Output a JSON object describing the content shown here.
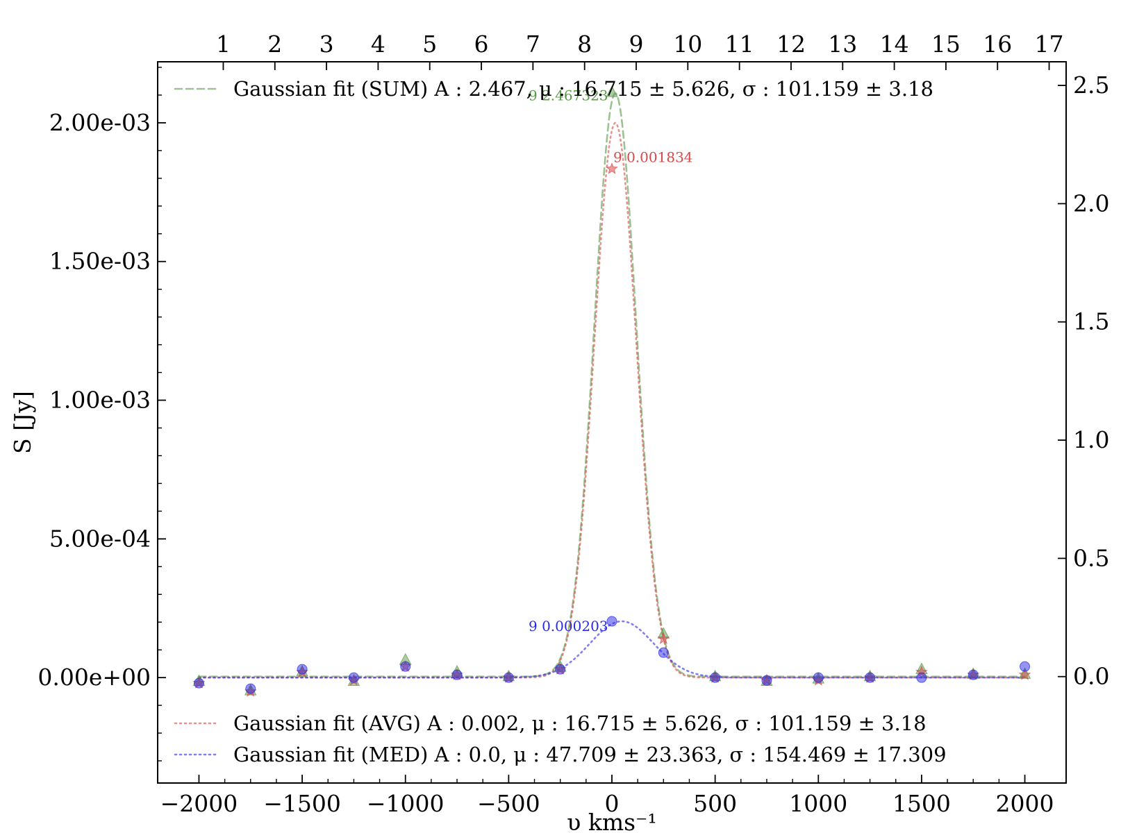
{
  "chart_data": {
    "type": "line",
    "xlabel": "υ kms⁻¹",
    "ylabel": "S [Jy]",
    "x_ticks": [
      "−2000",
      "−1500",
      "−1000",
      "−500",
      "0",
      "500",
      "1000",
      "1500",
      "2000"
    ],
    "y_left_ticks": [
      "0.00e+00",
      "5.00e-04",
      "1.00e-03",
      "1.50e-03",
      "2.00e-03"
    ],
    "y_right_ticks": [
      "0.0",
      "0.5",
      "1.0",
      "1.5",
      "2.0",
      "2.5"
    ],
    "x_top_ticks": [
      "1",
      "2",
      "3",
      "4",
      "5",
      "6",
      "7",
      "8",
      "9",
      "10",
      "11",
      "12",
      "13",
      "14",
      "15",
      "16",
      "17"
    ],
    "xlim": [
      -2200,
      2200
    ],
    "ylim_left": [
      -0.00038,
      0.00222
    ],
    "ylim_right": [
      -0.45,
      2.6
    ],
    "x": [
      -2000,
      -1750,
      -1500,
      -1250,
      -1000,
      -750,
      -500,
      -250,
      0,
      250,
      500,
      750,
      1000,
      1250,
      1500,
      1750,
      2000
    ],
    "series": [
      {
        "name": "Gaussian fit (SUM) A : 2.467, μ : 16.715 ± 5.626, σ : 101.159 ± 3.18",
        "axis": "right",
        "color": "#5a9a4a",
        "style": "dashed",
        "fit": {
          "A": 2.467,
          "mu": 16.715,
          "sigma": 101.159
        },
        "values": [
          -0.02,
          -0.06,
          0.02,
          -0.02,
          0.07,
          0.02,
          0.0,
          0.04,
          2.47,
          0.18,
          0.0,
          -0.02,
          -0.01,
          0.0,
          0.03,
          0.01,
          0.01
        ],
        "peak_label": "9 2.467323"
      },
      {
        "name": "Gaussian fit (AVG) A : 0.002, μ : 16.715 ± 5.626, σ : 101.159 ± 3.18",
        "axis": "left",
        "color": "#d94848",
        "style": "dotted",
        "fit": {
          "A": 0.002,
          "mu": 16.715,
          "sigma": 101.159
        },
        "values": [
          -2e-05,
          -5e-05,
          2e-05,
          -1e-05,
          4e-05,
          1e-05,
          0.0,
          3e-05,
          0.001834,
          0.00014,
          0.0,
          -1e-05,
          -1e-05,
          0.0,
          2e-05,
          1e-05,
          1e-05
        ],
        "peak_label": "9 0.001834"
      },
      {
        "name": "Gaussian fit (MED) A : 0.0, μ : 47.709 ± 23.363, σ : 154.469 ± 17.309",
        "axis": "left",
        "color": "#2a2ae8",
        "style": "dotted",
        "fit": {
          "A": 0.000203,
          "mu": 47.709,
          "sigma": 154.469
        },
        "values": [
          -2e-05,
          -4e-05,
          3e-05,
          0.0,
          4e-05,
          1e-05,
          0.0,
          3e-05,
          0.000203,
          9e-05,
          0.0,
          -1e-05,
          0.0,
          0.0,
          0.0,
          1e-05,
          4e-05
        ],
        "peak_label": "9 0.000203"
      }
    ],
    "legend_placement": [
      "top-left",
      "bottom-left"
    ],
    "grid": false
  }
}
